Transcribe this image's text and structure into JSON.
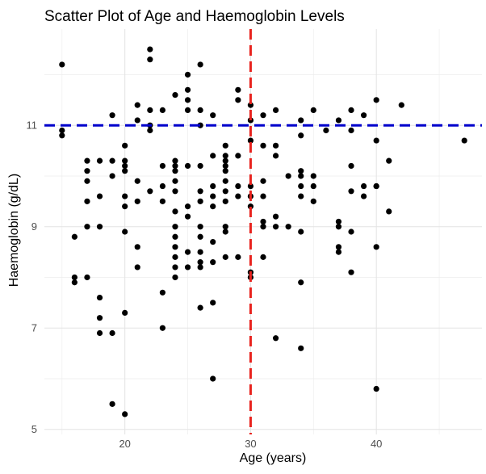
{
  "chart_data": {
    "type": "scatter",
    "title": "Scatter Plot of Age and Haemoglobin Levels",
    "xlabel": "Age (years)",
    "ylabel": "Haemoglobin (g/dL)",
    "xlim": [
      13.6,
      48.4
    ],
    "ylim": [
      4.9,
      12.9
    ],
    "x_ticks": [
      20,
      30,
      40
    ],
    "x_tick_labels": [
      "20",
      "30",
      "40"
    ],
    "x_minor_ticks": [
      15,
      25,
      35,
      45
    ],
    "y_ticks": [
      5,
      7,
      9,
      11
    ],
    "y_tick_labels": [
      "5",
      "7",
      "9",
      "11"
    ],
    "y_minor_ticks": [
      6,
      8,
      10,
      12
    ],
    "grid": true,
    "reference_lines": [
      {
        "orientation": "horizontal",
        "value": 11,
        "style": "dashed",
        "color": "#0000CC"
      },
      {
        "orientation": "vertical",
        "value": 30,
        "style": "dashed",
        "color": "#E8231E"
      }
    ],
    "point_color": "#000000",
    "x": [
      15,
      15,
      15,
      16,
      16,
      16,
      17,
      17,
      17,
      17,
      17,
      17,
      18,
      18,
      18,
      18,
      18,
      18,
      19,
      19,
      19,
      19,
      19,
      20,
      20,
      20,
      20,
      20,
      20,
      20,
      20,
      20,
      21,
      21,
      21,
      21,
      21,
      21,
      22,
      22,
      22,
      22,
      22,
      22,
      23,
      23,
      23,
      23,
      23,
      23,
      24,
      24,
      24,
      24,
      24,
      24,
      24,
      24,
      24,
      24,
      24,
      24,
      24,
      25,
      25,
      25,
      25,
      25,
      25,
      25,
      25,
      25,
      26,
      26,
      26,
      26,
      26,
      26,
      26,
      26,
      26,
      26,
      26,
      26,
      27,
      27,
      27,
      27,
      27,
      27,
      27,
      27,
      27,
      28,
      28,
      28,
      28,
      28,
      28,
      28,
      28,
      28,
      28,
      28,
      29,
      29,
      29,
      29,
      29,
      29,
      30,
      30,
      30,
      30,
      30,
      30,
      30,
      30,
      31,
      31,
      31,
      31,
      31,
      31,
      31,
      32,
      32,
      32,
      32,
      32,
      32,
      33,
      33,
      34,
      34,
      34,
      34,
      34,
      34,
      34,
      34,
      34,
      35,
      35,
      35,
      35,
      36,
      37,
      37,
      37,
      37,
      37,
      38,
      38,
      38,
      38,
      38,
      38,
      39,
      39,
      39,
      40,
      40,
      40,
      40,
      40,
      40,
      41,
      41,
      42,
      47
    ],
    "y": [
      12.2,
      10.9,
      10.8,
      8.8,
      8.0,
      7.9,
      10.1,
      9.9,
      9.5,
      9.0,
      8.0,
      10.3,
      10.3,
      9.6,
      9.0,
      7.6,
      7.2,
      6.9,
      11.2,
      10.3,
      10.0,
      6.9,
      5.5,
      10.6,
      10.3,
      10.1,
      9.6,
      9.4,
      8.9,
      7.3,
      5.3,
      10.2,
      11.4,
      11.1,
      9.9,
      9.5,
      8.6,
      8.2,
      12.5,
      12.3,
      11.3,
      11.0,
      10.9,
      9.7,
      11.3,
      10.2,
      9.5,
      7.7,
      7.0,
      9.8,
      11.6,
      10.3,
      10.2,
      10.1,
      9.9,
      9.7,
      9.3,
      8.8,
      8.6,
      8.4,
      8.2,
      8.0,
      9.0,
      12.0,
      11.7,
      11.3,
      10.2,
      9.2,
      8.5,
      8.2,
      9.4,
      11.5,
      12.2,
      11.3,
      11.0,
      10.2,
      9.7,
      9.5,
      8.8,
      8.3,
      8.2,
      7.4,
      9.0,
      8.5,
      11.2,
      10.4,
      9.8,
      9.4,
      8.7,
      8.3,
      7.5,
      6.0,
      9.6,
      10.6,
      10.4,
      10.3,
      10.2,
      10.1,
      9.9,
      9.7,
      9.5,
      9.0,
      8.9,
      8.4,
      11.7,
      11.5,
      10.4,
      9.8,
      9.6,
      8.4,
      11.4,
      11.1,
      10.7,
      9.6,
      9.4,
      8.1,
      8.0,
      9.8,
      11.2,
      10.6,
      9.9,
      9.1,
      9.0,
      8.4,
      9.6,
      11.3,
      10.6,
      10.4,
      9.2,
      9.0,
      6.8,
      9.0,
      10.0,
      11.1,
      10.8,
      10.1,
      10.0,
      9.8,
      9.6,
      8.9,
      7.9,
      6.6,
      11.3,
      9.8,
      9.5,
      10.0,
      10.9,
      11.1,
      9.1,
      9.0,
      8.6,
      8.5,
      11.3,
      10.9,
      10.2,
      9.7,
      8.9,
      8.1,
      11.2,
      9.6,
      9.8,
      11.5,
      10.7,
      9.8,
      8.6,
      5.8,
      9.8,
      10.3,
      9.3,
      11.4,
      10.7
    ]
  }
}
